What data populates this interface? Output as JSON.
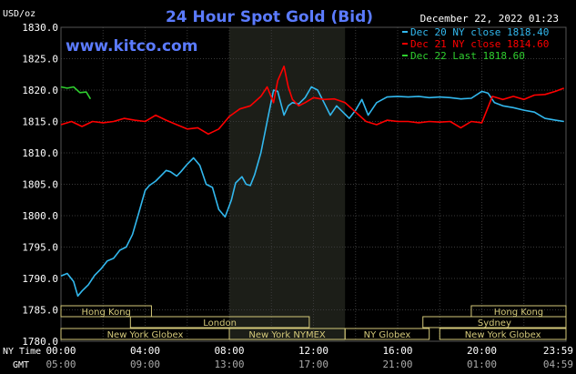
{
  "title": "24 Hour Spot Gold (Bid)",
  "date": "December 22, 2022 01:23",
  "website": "www.kitco.com",
  "unit": "USD/oz",
  "colors": {
    "background": "#000000",
    "plot_bg": "#000000",
    "session_bg": "#1c1e18",
    "grid": "#3a3a3a",
    "title": "#5b7bff",
    "website": "#5b7bff",
    "text": "#ffffff",
    "session_bar": "#d4c97a",
    "dec20": "#32b8ee",
    "dec21": "#ff0000",
    "dec22": "#2fcf2f"
  },
  "chart_data": {
    "type": "line",
    "title": "24 Hour Spot Gold (Bid)",
    "ylabel": "USD/oz",
    "ylim": [
      1780,
      1830
    ],
    "yticks": [
      1780,
      1785,
      1790,
      1795,
      1800,
      1805,
      1810,
      1815,
      1820,
      1825,
      1830
    ],
    "ytick_labels": [
      "1780.0",
      "1785.0",
      "1790.0",
      "1795.0",
      "1800.0",
      "1805.0",
      "1810.0",
      "1815.0",
      "1820.0",
      "1825.0",
      "1830.0"
    ],
    "xlim": [
      0,
      24
    ],
    "xticks": [
      0,
      4,
      8,
      12,
      16,
      20,
      24
    ],
    "ny_time_label": "NY Time",
    "gmt_label": "GMT",
    "ny_time_labels": [
      "00:00",
      "04:00",
      "08:00",
      "12:00",
      "16:00",
      "20:00",
      "23:59"
    ],
    "gmt_labels": [
      "05:00",
      "09:00",
      "13:00",
      "17:00",
      "21:00",
      "01:00",
      "04:59"
    ],
    "grid": true,
    "legend_position": "top-right",
    "highlight_range": [
      8,
      13.5
    ],
    "series": [
      {
        "name": "Dec 20 NY close 1818.40",
        "color": "#32b8ee",
        "x": [
          0,
          0.3,
          0.6,
          0.8,
          1.0,
          1.3,
          1.6,
          1.9,
          2.2,
          2.5,
          2.8,
          3.1,
          3.4,
          3.7,
          4.0,
          4.2,
          4.5,
          4.8,
          5.0,
          5.2,
          5.5,
          5.7,
          6.0,
          6.3,
          6.6,
          6.9,
          7.2,
          7.5,
          7.8,
          8.1,
          8.3,
          8.6,
          8.8,
          9.0,
          9.2,
          9.5,
          9.8,
          10.1,
          10.3,
          10.6,
          10.8,
          11.0,
          11.3,
          11.6,
          11.9,
          12.2,
          12.5,
          12.8,
          13.1,
          13.4,
          13.7,
          14.0,
          14.3,
          14.6,
          15.0,
          15.5,
          16.0,
          16.5,
          17.0,
          17.5,
          18.0,
          18.5,
          19.0,
          19.5,
          20.0,
          20.3,
          20.6,
          21.0,
          21.5,
          22.0,
          22.5,
          23.0,
          23.5,
          23.9
        ],
        "y": [
          1790.4,
          1790.8,
          1789.5,
          1787.2,
          1788.0,
          1789.0,
          1790.5,
          1791.5,
          1792.8,
          1793.2,
          1794.5,
          1795.0,
          1797.0,
          1800.5,
          1804.0,
          1804.8,
          1805.5,
          1806.5,
          1807.2,
          1807.0,
          1806.3,
          1807.0,
          1808.2,
          1809.2,
          1808.0,
          1805.0,
          1804.5,
          1801.0,
          1799.8,
          1802.5,
          1805.2,
          1806.2,
          1805.0,
          1804.8,
          1806.5,
          1810.0,
          1815.0,
          1820.0,
          1819.8,
          1816.0,
          1817.5,
          1818.0,
          1817.8,
          1818.8,
          1820.5,
          1820.0,
          1818.0,
          1816.0,
          1817.5,
          1816.5,
          1815.5,
          1816.8,
          1818.5,
          1816.0,
          1818.0,
          1818.9,
          1819.0,
          1818.9,
          1819.0,
          1818.8,
          1818.9,
          1818.8,
          1818.6,
          1818.7,
          1819.8,
          1819.5,
          1818.0,
          1817.5,
          1817.2,
          1816.8,
          1816.5,
          1815.5,
          1815.2,
          1815.0
        ]
      },
      {
        "name": "Dec 21 NY close 1814.60",
        "color": "#ff0000",
        "x": [
          0,
          0.5,
          1.0,
          1.5,
          2.0,
          2.5,
          3.0,
          3.5,
          4.0,
          4.5,
          5.0,
          5.5,
          6.0,
          6.5,
          7.0,
          7.5,
          8.0,
          8.5,
          9.0,
          9.5,
          9.8,
          10.1,
          10.3,
          10.6,
          10.8,
          11.0,
          11.3,
          11.6,
          12.0,
          12.5,
          13.0,
          13.5,
          14.0,
          14.5,
          15.0,
          15.5,
          16.0,
          16.5,
          17.0,
          17.5,
          18.0,
          18.5,
          19.0,
          19.5,
          20.0,
          20.5,
          21.0,
          21.5,
          22.0,
          22.5,
          23.0,
          23.5,
          23.9
        ],
        "y": [
          1814.5,
          1815.0,
          1814.2,
          1815.0,
          1814.8,
          1815.0,
          1815.5,
          1815.2,
          1815.0,
          1816.0,
          1815.2,
          1814.5,
          1813.8,
          1814.0,
          1813.0,
          1813.8,
          1815.8,
          1817.0,
          1817.5,
          1819.0,
          1820.5,
          1818.0,
          1821.5,
          1823.8,
          1820.5,
          1818.5,
          1817.5,
          1818.0,
          1818.8,
          1818.5,
          1818.6,
          1818.0,
          1816.5,
          1815.0,
          1814.5,
          1815.2,
          1815.0,
          1815.0,
          1814.8,
          1815.0,
          1814.9,
          1815.0,
          1814.0,
          1815.0,
          1814.8,
          1819.0,
          1818.5,
          1819.0,
          1818.5,
          1819.2,
          1819.3,
          1819.8,
          1820.3
        ]
      },
      {
        "name": "Dec 22 Last 1818.60",
        "color": "#2fcf2f",
        "x": [
          0,
          0.3,
          0.6,
          0.9,
          1.2,
          1.4
        ],
        "y": [
          1820.5,
          1820.3,
          1820.5,
          1819.6,
          1819.7,
          1818.6
        ]
      }
    ],
    "sessions": [
      {
        "name": "Hong Kong",
        "start": 0,
        "end": 4.3,
        "row": 0
      },
      {
        "name": "London",
        "start": 3.3,
        "end": 11.8,
        "row": 1
      },
      {
        "name": "New York Globex",
        "start": 0,
        "end": 8.0,
        "row": 2
      },
      {
        "name": "New York NYMEX",
        "start": 8.0,
        "end": 13.5,
        "row": 2
      },
      {
        "name": "NY Globex",
        "start": 13.5,
        "end": 17.5,
        "row": 2
      },
      {
        "name": "Hong Kong",
        "start": 19.5,
        "end": 24,
        "row": 0
      },
      {
        "name": "Sydney",
        "start": 17.2,
        "end": 24,
        "row": 1
      },
      {
        "name": "New York Globex",
        "start": 18.0,
        "end": 24,
        "row": 2
      }
    ]
  }
}
